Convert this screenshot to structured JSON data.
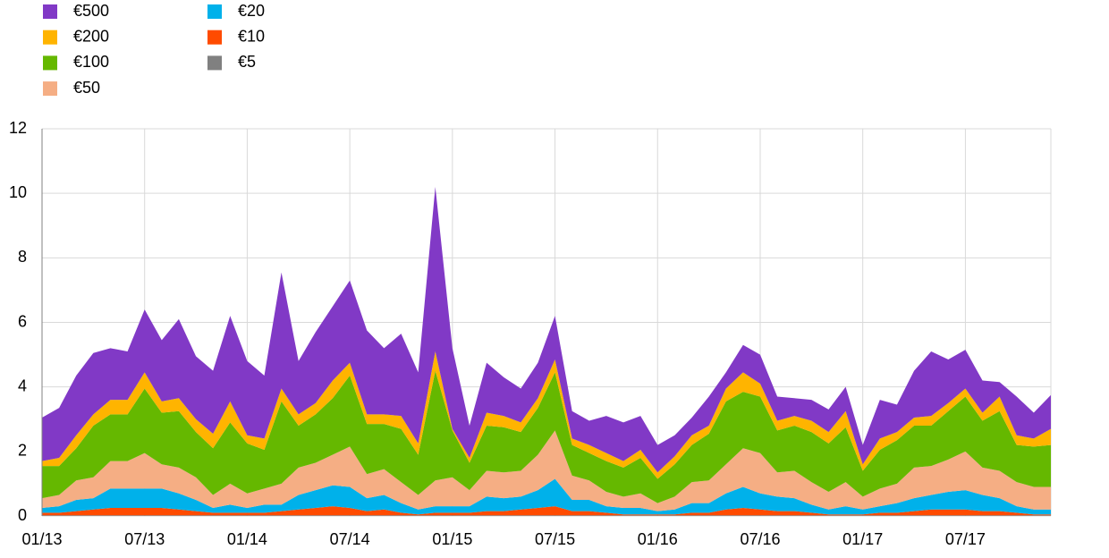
{
  "chart_data": {
    "type": "stacked_area",
    "categories": [
      "01/13",
      null,
      null,
      null,
      null,
      null,
      "07/13",
      null,
      null,
      null,
      null,
      null,
      "01/14",
      null,
      null,
      null,
      null,
      null,
      "07/14",
      null,
      null,
      null,
      null,
      null,
      "01/15",
      null,
      null,
      null,
      null,
      null,
      "07/15",
      null,
      null,
      null,
      null,
      null,
      "01/16",
      null,
      null,
      null,
      null,
      null,
      "07/16",
      null,
      null,
      null,
      null,
      null,
      "01/17",
      null,
      null,
      null,
      null,
      null,
      "07/17",
      null,
      null,
      null,
      null,
      null
    ],
    "series": [
      {
        "name": "€5",
        "color": "#808080",
        "values": [
          0.02,
          0.02,
          0.02,
          0.02,
          0.02,
          0.02,
          0.02,
          0.02,
          0.02,
          0.02,
          0.02,
          0.02,
          0.02,
          0.02,
          0.02,
          0.02,
          0.02,
          0.02,
          0.02,
          0.02,
          0.02,
          0.02,
          0.02,
          0.02,
          0.02,
          0.02,
          0.02,
          0.02,
          0.02,
          0.02,
          0.02,
          0.02,
          0.02,
          0.02,
          0.02,
          0.02,
          0.02,
          0.02,
          0.02,
          0.02,
          0.02,
          0.02,
          0.02,
          0.02,
          0.02,
          0.02,
          0.02,
          0.02,
          0.02,
          0.02,
          0.02,
          0.02,
          0.02,
          0.02,
          0.02,
          0.02,
          0.02,
          0.02,
          0.02,
          0.02
        ]
      },
      {
        "name": "€10",
        "color": "#ff4b00",
        "values": [
          0.08,
          0.08,
          0.13,
          0.18,
          0.23,
          0.23,
          0.23,
          0.23,
          0.18,
          0.13,
          0.08,
          0.08,
          0.08,
          0.08,
          0.13,
          0.18,
          0.23,
          0.28,
          0.23,
          0.13,
          0.18,
          0.08,
          0.03,
          0.08,
          0.08,
          0.08,
          0.13,
          0.13,
          0.18,
          0.23,
          0.28,
          0.13,
          0.13,
          0.08,
          0.03,
          0.03,
          0.03,
          0.03,
          0.08,
          0.08,
          0.18,
          0.23,
          0.18,
          0.13,
          0.13,
          0.08,
          0.03,
          0.03,
          0.03,
          0.08,
          0.08,
          0.13,
          0.18,
          0.18,
          0.18,
          0.13,
          0.13,
          0.08,
          0.03,
          0.03
        ]
      },
      {
        "name": "€20",
        "color": "#00b1ea",
        "values": [
          0.15,
          0.2,
          0.35,
          0.35,
          0.6,
          0.6,
          0.6,
          0.6,
          0.5,
          0.35,
          0.15,
          0.25,
          0.15,
          0.25,
          0.2,
          0.45,
          0.55,
          0.65,
          0.65,
          0.4,
          0.45,
          0.3,
          0.15,
          0.2,
          0.2,
          0.2,
          0.45,
          0.4,
          0.4,
          0.55,
          0.85,
          0.35,
          0.35,
          0.2,
          0.2,
          0.2,
          0.1,
          0.15,
          0.3,
          0.3,
          0.5,
          0.65,
          0.5,
          0.45,
          0.4,
          0.25,
          0.15,
          0.25,
          0.15,
          0.2,
          0.3,
          0.4,
          0.45,
          0.55,
          0.6,
          0.5,
          0.4,
          0.2,
          0.15,
          0.15
        ]
      },
      {
        "name": "€50",
        "color": "#f5ae84",
        "values": [
          0.3,
          0.35,
          0.6,
          0.65,
          0.85,
          0.85,
          1.1,
          0.75,
          0.8,
          0.7,
          0.4,
          0.65,
          0.45,
          0.5,
          0.65,
          0.85,
          0.85,
          0.95,
          1.25,
          0.75,
          0.8,
          0.65,
          0.45,
          0.8,
          0.9,
          0.5,
          0.8,
          0.8,
          0.8,
          1.1,
          1.5,
          0.75,
          0.6,
          0.45,
          0.35,
          0.45,
          0.25,
          0.4,
          0.65,
          0.7,
          0.9,
          1.2,
          1.25,
          0.75,
          0.85,
          0.7,
          0.55,
          0.75,
          0.4,
          0.55,
          0.6,
          0.95,
          0.9,
          1.0,
          1.2,
          0.85,
          0.85,
          0.75,
          0.7,
          0.7
        ]
      },
      {
        "name": "€100",
        "color": "#65b800",
        "values": [
          1.0,
          0.9,
          1.0,
          1.6,
          1.45,
          1.45,
          2.0,
          1.6,
          1.75,
          1.4,
          1.45,
          1.9,
          1.55,
          1.2,
          2.55,
          1.3,
          1.5,
          1.75,
          2.2,
          1.55,
          1.4,
          1.65,
          1.25,
          3.4,
          1.45,
          0.85,
          1.4,
          1.4,
          1.2,
          1.45,
          1.8,
          0.95,
          0.85,
          0.95,
          0.9,
          1.1,
          0.75,
          1.0,
          1.15,
          1.45,
          1.95,
          1.75,
          1.75,
          1.3,
          1.4,
          1.55,
          1.5,
          1.7,
          0.8,
          1.2,
          1.35,
          1.3,
          1.25,
          1.5,
          1.7,
          1.45,
          1.85,
          1.15,
          1.25,
          1.3
        ]
      },
      {
        "name": "€200",
        "color": "#ffb400",
        "values": [
          0.15,
          0.25,
          0.4,
          0.35,
          0.45,
          0.45,
          0.5,
          0.35,
          0.4,
          0.4,
          0.45,
          0.65,
          0.25,
          0.35,
          0.4,
          0.35,
          0.35,
          0.55,
          0.4,
          0.3,
          0.3,
          0.4,
          0.35,
          0.6,
          0.05,
          0.15,
          0.4,
          0.35,
          0.3,
          0.3,
          0.4,
          0.2,
          0.25,
          0.25,
          0.2,
          0.25,
          0.2,
          0.25,
          0.3,
          0.25,
          0.4,
          0.6,
          0.4,
          0.3,
          0.3,
          0.35,
          0.35,
          0.5,
          0.2,
          0.35,
          0.25,
          0.25,
          0.3,
          0.25,
          0.25,
          0.25,
          0.45,
          0.3,
          0.25,
          0.5
        ]
      },
      {
        "name": "€500",
        "color": "#8139c6",
        "values": [
          1.35,
          1.55,
          1.85,
          1.9,
          1.6,
          1.5,
          1.95,
          1.9,
          2.45,
          1.95,
          1.95,
          2.65,
          2.3,
          1.95,
          3.6,
          1.65,
          2.2,
          2.3,
          2.55,
          2.6,
          2.05,
          2.55,
          2.2,
          5.1,
          2.5,
          1.0,
          1.55,
          1.2,
          1.05,
          1.1,
          1.35,
          0.85,
          0.75,
          1.15,
          1.2,
          1.05,
          0.85,
          0.65,
          0.55,
          0.9,
          0.5,
          0.85,
          0.9,
          0.75,
          0.55,
          0.65,
          0.7,
          0.75,
          0.6,
          1.2,
          0.85,
          1.45,
          2.0,
          1.35,
          1.2,
          1.0,
          0.45,
          1.2,
          0.8,
          1.05
        ]
      }
    ],
    "ylim": [
      0,
      12
    ],
    "yticks": [
      0,
      2,
      4,
      6,
      8,
      10,
      12
    ],
    "grid": true
  }
}
